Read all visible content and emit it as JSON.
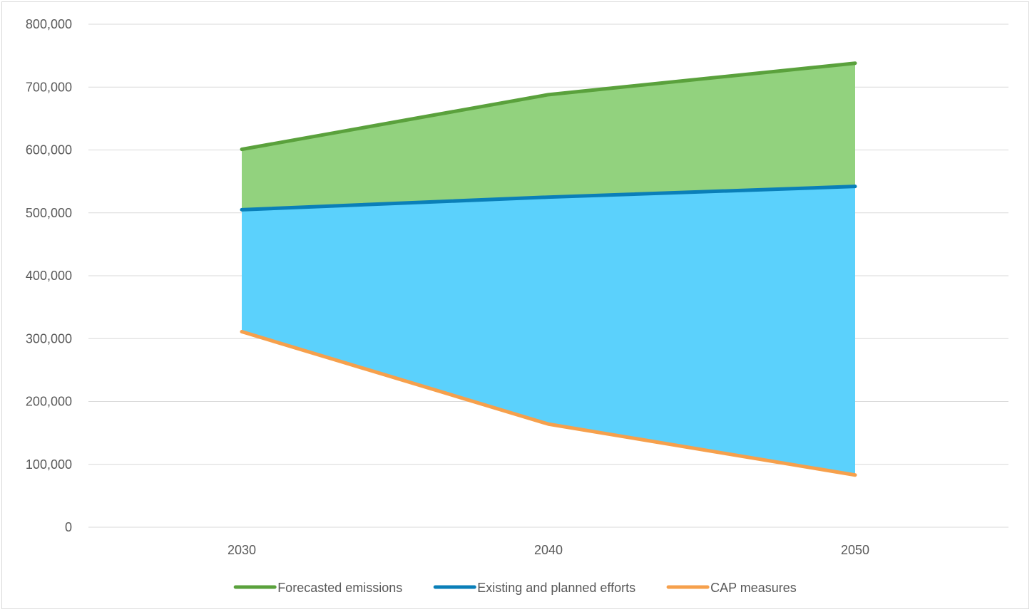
{
  "chart_data": {
    "type": "area",
    "x": [
      "2030",
      "2040",
      "2050"
    ],
    "ylim": [
      0,
      800000
    ],
    "y_ticks": [
      {
        "value": 0,
        "label": "0"
      },
      {
        "value": 100000,
        "label": "100,000"
      },
      {
        "value": 200000,
        "label": "200,000"
      },
      {
        "value": 300000,
        "label": "300,000"
      },
      {
        "value": 400000,
        "label": "400,000"
      },
      {
        "value": 500000,
        "label": "500,000"
      },
      {
        "value": 600000,
        "label": "600,000"
      },
      {
        "value": 700000,
        "label": "700,000"
      },
      {
        "value": 800000,
        "label": "800,000"
      }
    ],
    "grid": true,
    "legend_position": "bottom",
    "series": [
      {
        "name": "Forecasted emissions",
        "values": [
          601000,
          688000,
          738000
        ],
        "line_color": "#5aa13c",
        "fill_color": "#92d27e"
      },
      {
        "name": "Existing and planned efforts",
        "values": [
          505000,
          525000,
          542000
        ],
        "line_color": "#0a7fb8",
        "fill_color": "#5bd1fc"
      },
      {
        "name": "CAP measures",
        "values": [
          311000,
          164000,
          83000
        ],
        "line_color": "#f6a04c",
        "fill_color": "#ffffff"
      }
    ]
  }
}
